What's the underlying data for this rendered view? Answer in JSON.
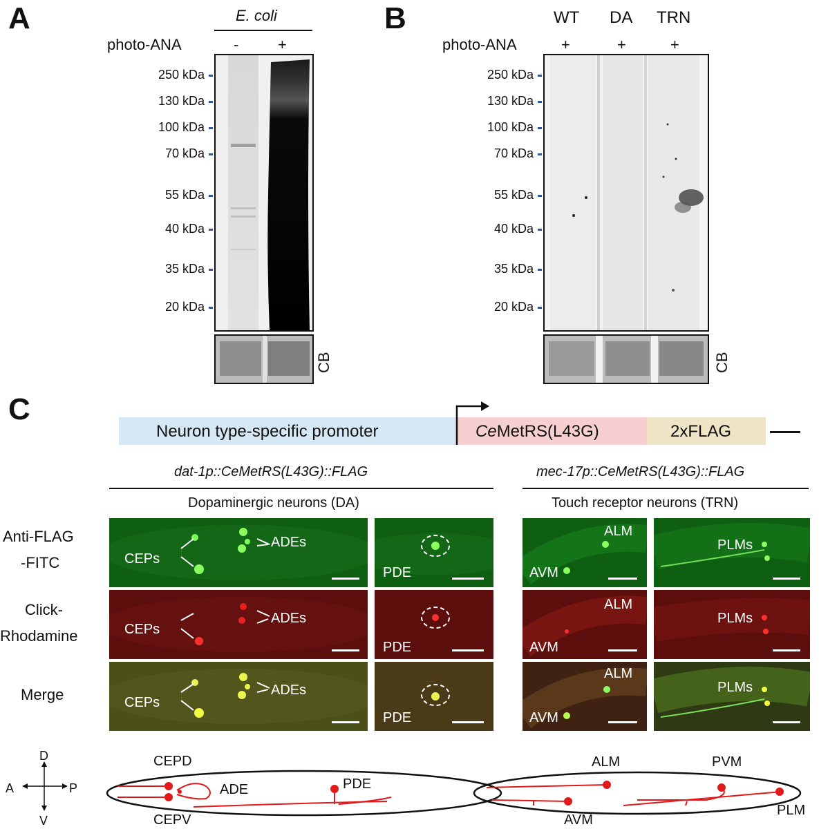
{
  "panel_letters": [
    "A",
    "B",
    "C"
  ],
  "panelA": {
    "header": "E. coli",
    "row_label": "photo-ANA",
    "lanes": [
      "-",
      "+"
    ],
    "markers": [
      "250 kDa",
      "130 kDa",
      "100 kDa",
      "70 kDa",
      "55 kDa",
      "40 kDa",
      "35 kDa",
      "20 kDa"
    ],
    "stain_label": "CB"
  },
  "panelB": {
    "columns": [
      "WT",
      "DA",
      "TRN"
    ],
    "row_label": "photo-ANA",
    "lanes": [
      "+",
      "+",
      "+"
    ],
    "markers": [
      "250 kDa",
      "130 kDa",
      "100 kDa",
      "70 kDa",
      "55 kDa",
      "40 kDa",
      "35 kDa",
      "20 kDa"
    ],
    "stain_label": "CB"
  },
  "panelC": {
    "construct": {
      "promoter": "Neuron type-specific promoter",
      "gene_prefix": "Ce",
      "gene_suffix": "MetRS(L43G)",
      "tag": "2xFLAG"
    },
    "left": {
      "genotype": "dat-1p::CeMetRS(L43G)::FLAG",
      "title": "Dopaminergic neurons (DA)"
    },
    "right": {
      "genotype": "mec-17p::CeMetRS(L43G)::FLAG",
      "title": "Touch receptor neurons (TRN)"
    },
    "rows": [
      {
        "line1": "Anti-FLAG",
        "line2": "-FITC"
      },
      {
        "line1": "Click-",
        "line2": "Rhodamine"
      },
      {
        "line1": "Merge",
        "line2": ""
      }
    ],
    "image_labels": {
      "ceps": "CEPs",
      "ades": "ADEs",
      "pde": "PDE",
      "alm": "ALM",
      "avm": "AVM",
      "plms": "PLMs"
    },
    "axes": {
      "d": "D",
      "v": "V",
      "a": "A",
      "p": "P"
    },
    "schematic_left": {
      "cepd": "CEPD",
      "cepv": "CEPV",
      "ade": "ADE",
      "pde": "PDE"
    },
    "schematic_right": {
      "alm": "ALM",
      "pvm": "PVM",
      "avm": "AVM",
      "plm": "PLM"
    }
  },
  "colors": {
    "fitc": "#0f5f12",
    "rhodamine": "#5c0e0c",
    "merge": "#4a5018",
    "promoter_box": "#d6e8f4",
    "gene_box": "#f6cfd0",
    "tag_box": "#f0e4c6",
    "neuron_red": "#e01a1a",
    "marker_tick": "#2e5a9a"
  }
}
